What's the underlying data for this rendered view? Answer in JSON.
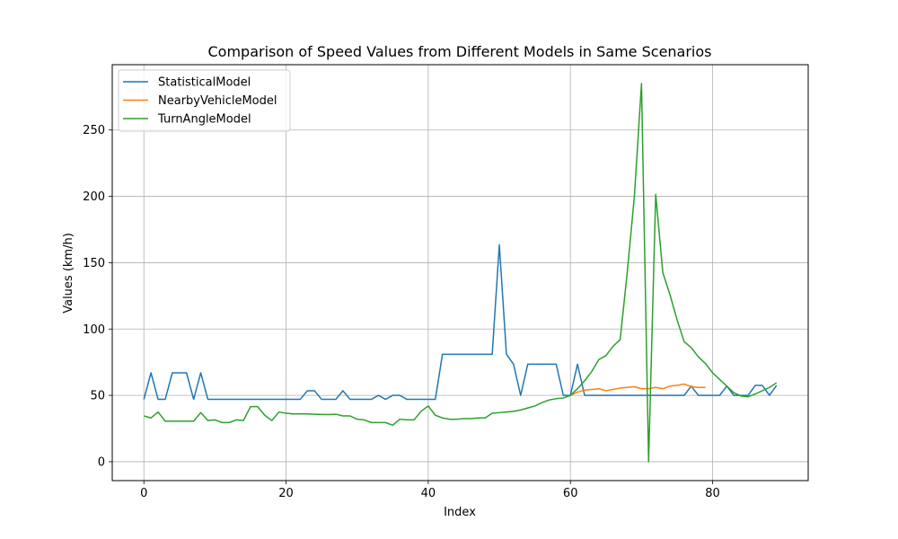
{
  "chart_data": {
    "type": "line",
    "title": "Comparison of Speed Values from Different Models in Same Scenarios",
    "xlabel": "Index",
    "ylabel": "Values (km/h)",
    "xlim": [
      -4.45,
      93.45
    ],
    "ylim": [
      -14.25,
      299.25
    ],
    "x_ticks": [
      0,
      20,
      40,
      60,
      80
    ],
    "y_ticks": [
      0,
      50,
      100,
      150,
      200,
      250
    ],
    "grid": true,
    "legend_position": "top-left",
    "series": [
      {
        "name": "StatisticalModel",
        "color": "#1f77b4",
        "x_start": 0,
        "values": [
          47,
          67,
          47,
          47,
          67,
          67,
          67,
          47,
          67,
          47,
          47,
          47,
          47,
          47,
          47,
          47,
          47,
          47,
          47,
          47,
          47,
          47,
          47,
          53.5,
          53.5,
          47,
          47,
          47,
          53.5,
          47,
          47,
          47,
          47,
          50,
          47,
          50,
          50,
          47,
          47,
          47,
          47,
          47,
          81,
          81,
          81,
          81,
          81,
          81,
          81,
          81,
          163.5,
          81,
          73.5,
          50,
          73.5,
          73.5,
          73.5,
          73.5,
          73.5,
          50,
          50,
          73.5,
          50,
          50,
          50,
          50,
          50,
          50,
          50,
          50,
          50,
          50,
          50,
          50,
          50,
          50,
          50,
          57,
          50,
          50,
          50,
          50,
          57,
          50,
          50,
          50,
          57.5,
          57.5,
          50,
          57.5
        ]
      },
      {
        "name": "NearbyVehicleModel",
        "color": "#ff7f0e",
        "x_start": 60,
        "values": [
          50,
          52.5,
          54,
          54.5,
          55,
          53.5,
          54.5,
          55.5,
          56,
          56.5,
          55,
          55,
          56,
          55,
          57,
          57.5,
          58.5,
          56.5,
          56,
          56
        ]
      },
      {
        "name": "TurnAngleModel",
        "color": "#2ca02c",
        "x_start": 0,
        "values": [
          34.5,
          33,
          37.5,
          30.5,
          30.5,
          30.5,
          30.5,
          30.5,
          37,
          31,
          31.5,
          29.5,
          29.5,
          31.5,
          31,
          41.5,
          41.5,
          35,
          31,
          37.5,
          36.5,
          36,
          36,
          36,
          35.8,
          35.6,
          35.5,
          35.8,
          34.5,
          34.5,
          32,
          31.5,
          29.5,
          29.5,
          29.5,
          27.5,
          32,
          31.5,
          31.5,
          38,
          42,
          35,
          33,
          32,
          32,
          32.5,
          32.5,
          33,
          33,
          36.5,
          37,
          37.5,
          38,
          39,
          40.5,
          42,
          44.5,
          46.5,
          47.5,
          48,
          50,
          55,
          61,
          68,
          77,
          80,
          87,
          92,
          143,
          200,
          285,
          0,
          201.5,
          142.5,
          126,
          107,
          90.5,
          86,
          79,
          74,
          67,
          62,
          57,
          52,
          49.5,
          49,
          51,
          53.5,
          56,
          59.5
        ]
      }
    ]
  }
}
